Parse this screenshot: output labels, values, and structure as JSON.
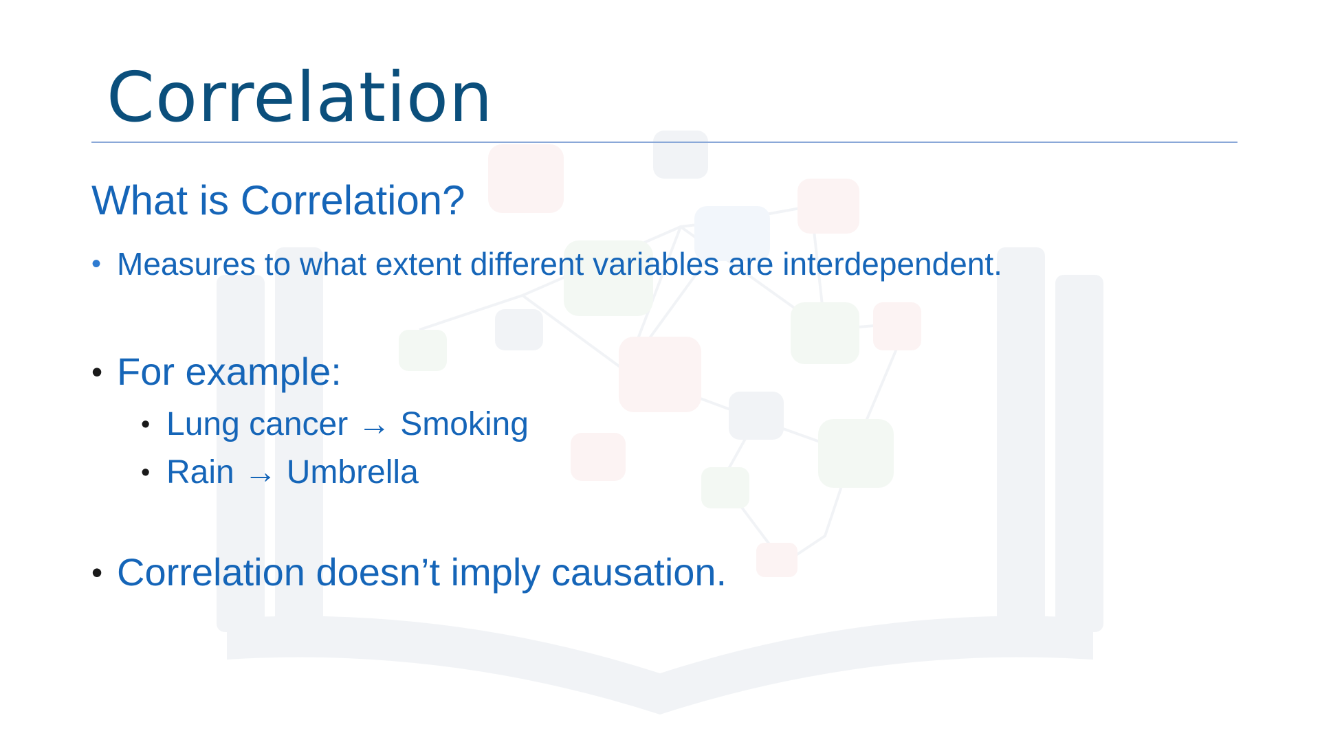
{
  "slide": {
    "title": "Correlation",
    "subheading": "What is Correlation?",
    "bullets": [
      "Measures to what extent different variables are interdependent.",
      "For example:",
      "Correlation doesn’t imply causation."
    ],
    "examples": [
      {
        "cause": "Lung cancer",
        "arrow": "→",
        "effect": "Smoking"
      },
      {
        "cause": "Rain",
        "arrow": "→",
        "effect": "Umbrella"
      }
    ],
    "bullet_glyph": "•"
  },
  "colors": {
    "title": "#0b4f7c",
    "body": "#1565b8",
    "rule": "#8aa8d8"
  },
  "icons": {
    "watermark": "book-network-watermark-icon"
  }
}
